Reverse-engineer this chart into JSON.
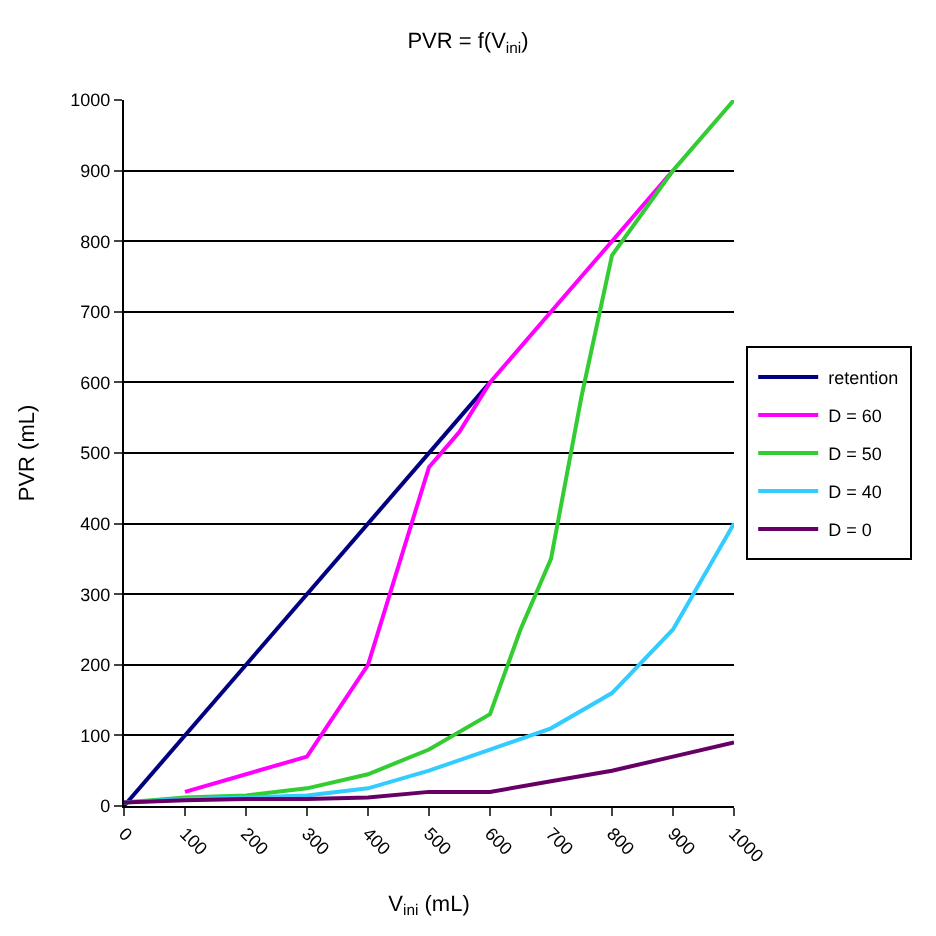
{
  "chart_data": {
    "type": "line",
    "title": "PVR = f(V$_{ini}$)",
    "xlabel": "V$_{ini}$ (mL)",
    "ylabel": "PVR (mL)",
    "xlim": [
      0,
      1000
    ],
    "xticks": [
      0,
      100,
      200,
      300,
      400,
      500,
      600,
      700,
      800,
      900,
      1000
    ],
    "ylim": [
      0,
      1000
    ],
    "yticks": [
      0,
      100,
      200,
      300,
      400,
      500,
      600,
      700,
      800,
      900,
      1000
    ],
    "grid": "y",
    "legend": "right",
    "marker": "none",
    "line_style": "solid",
    "series": [
      {
        "name": "retention",
        "color": "#000080",
        "x": [
          0,
          600
        ],
        "values": [
          0,
          600
        ]
      },
      {
        "name": "D = 60",
        "color": "#ff00ff",
        "x": [
          100,
          300,
          400,
          500,
          550,
          600,
          700,
          800,
          900
        ],
        "values": [
          20,
          70,
          200,
          480,
          530,
          600,
          700,
          800,
          900
        ]
      },
      {
        "name": "D = 50",
        "color": "#33cc33",
        "x": [
          0,
          100,
          200,
          300,
          400,
          500,
          600,
          650,
          700,
          750,
          800,
          900,
          1000
        ],
        "values": [
          5,
          12,
          15,
          25,
          45,
          80,
          130,
          250,
          350,
          580,
          780,
          900,
          1000
        ]
      },
      {
        "name": "D = 40",
        "color": "#33ccff",
        "x": [
          0,
          100,
          200,
          300,
          400,
          500,
          600,
          700,
          800,
          900,
          1000
        ],
        "values": [
          5,
          10,
          12,
          15,
          25,
          50,
          80,
          110,
          160,
          250,
          400
        ]
      },
      {
        "name": "D = 0",
        "color": "#660066",
        "x": [
          0,
          100,
          200,
          300,
          400,
          500,
          600,
          700,
          800,
          900,
          1000
        ],
        "values": [
          5,
          8,
          10,
          10,
          12,
          20,
          20,
          35,
          50,
          70,
          90
        ]
      }
    ]
  }
}
